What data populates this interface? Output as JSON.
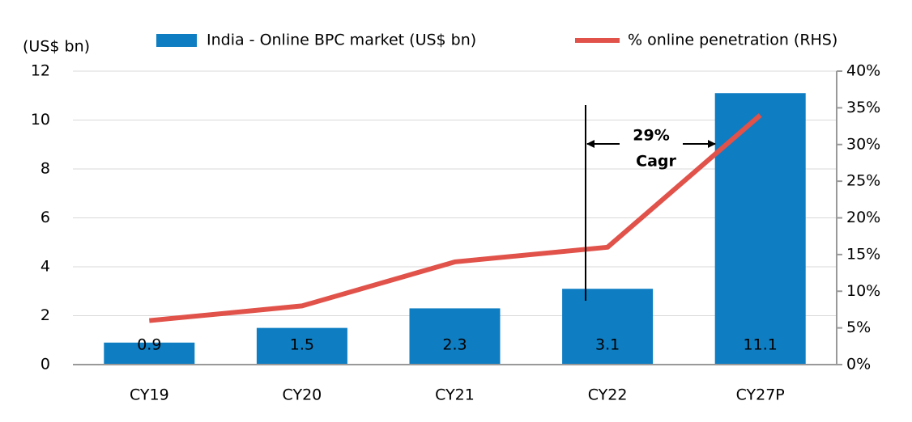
{
  "chart_data": {
    "type": "bar_line",
    "y_label": "(US$ bn)",
    "categories": [
      "CY19",
      "CY20",
      "CY21",
      "CY22",
      "CY27P"
    ],
    "series": [
      {
        "name": "India - Online BPC market (US$ bn)",
        "type": "bar",
        "color": "#0e7dc2",
        "values": [
          0.9,
          1.5,
          2.3,
          3.1,
          11.1
        ]
      },
      {
        "name": "% online penetration (RHS)",
        "type": "line",
        "axis": "y2",
        "color": "#e0524a",
        "values": [
          6,
          8,
          14,
          16,
          34
        ]
      }
    ],
    "ylim": [
      0,
      12
    ],
    "yticks": [
      0,
      2,
      4,
      6,
      8,
      10,
      12
    ],
    "y2lim": [
      0,
      40
    ],
    "y2ticks": [
      {
        "value": 0,
        "label": "0%"
      },
      {
        "value": 5,
        "label": "5%"
      },
      {
        "value": 10,
        "label": "10%"
      },
      {
        "value": 15,
        "label": "15%"
      },
      {
        "value": 20,
        "label": "20%"
      },
      {
        "value": 25,
        "label": "25%"
      },
      {
        "value": 30,
        "label": "30%"
      },
      {
        "value": 35,
        "label": "35%"
      },
      {
        "value": 40,
        "label": "40%"
      }
    ],
    "grid": true,
    "annotations": [
      "29%",
      "Cagr"
    ]
  }
}
